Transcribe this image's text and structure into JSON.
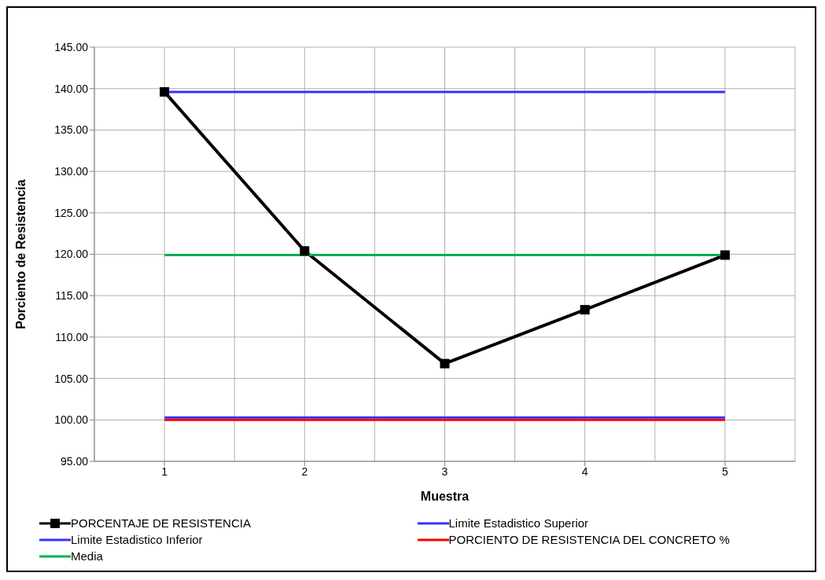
{
  "chart_data": {
    "type": "line",
    "xlabel": "Muestra",
    "ylabel": "Porciento de Resistencia",
    "categories": [
      "1",
      "2",
      "3",
      "4",
      "5"
    ],
    "series": [
      {
        "name": "PORCENTAJE DE RESISTENCIA",
        "color": "#000000",
        "values": [
          139.6,
          120.4,
          106.8,
          113.3,
          119.9
        ],
        "marker": "square"
      },
      {
        "name": "Limite Estadistico Superior",
        "color": "#3333ff",
        "values": [
          139.6,
          139.6,
          139.6,
          139.6,
          139.6
        ],
        "marker": "none"
      },
      {
        "name": "Limite Estadistico Inferior",
        "color": "#3333ff",
        "values": [
          100.3,
          100.3,
          100.3,
          100.3,
          100.3
        ],
        "marker": "none"
      },
      {
        "name": "PORCIENTO DE RESISTENCIA DEL CONCRETO %",
        "color": "#ff0000",
        "values": [
          100.0,
          100.0,
          100.0,
          100.0,
          100.0
        ],
        "marker": "none"
      },
      {
        "name": "Media",
        "color": "#00b050",
        "values": [
          119.9,
          119.9,
          119.9,
          119.9,
          119.9
        ],
        "marker": "none"
      }
    ],
    "ylim": [
      95,
      145
    ],
    "yticks": [
      {
        "value": 95,
        "label": "95.00"
      },
      {
        "value": 100,
        "label": "100.00"
      },
      {
        "value": 105,
        "label": "105.00"
      },
      {
        "value": 110,
        "label": "110.00"
      },
      {
        "value": 115,
        "label": "115.00"
      },
      {
        "value": 120,
        "label": "120.00"
      },
      {
        "value": 125,
        "label": "125.00"
      },
      {
        "value": 130,
        "label": "130.00"
      },
      {
        "value": 135,
        "label": "135.00"
      },
      {
        "value": 140,
        "label": "140.00"
      },
      {
        "value": 145,
        "label": "145.00"
      }
    ],
    "grid": true,
    "legend": "bottom",
    "line_style": "solid"
  }
}
